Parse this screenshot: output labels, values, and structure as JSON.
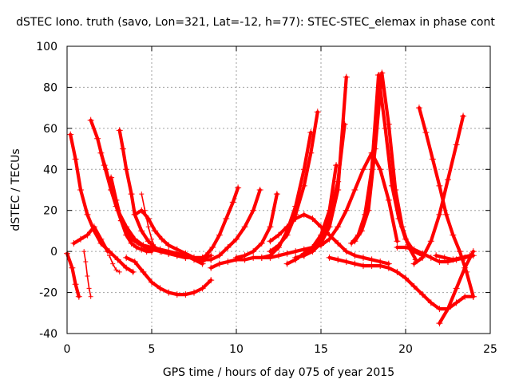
{
  "chart_data": {
    "type": "scatter",
    "title": "dSTEC Iono. truth (savo, Lon=321, Lat=-12, h=77): STEC-STEC_elemax in phase cont",
    "xlabel": "GPS time / hours of day 075 of year 2015",
    "ylabel": "dSTEC  / TECUs",
    "xlim": [
      0,
      25
    ],
    "ylim": [
      -40,
      100
    ],
    "xticks": [
      0,
      5,
      10,
      15,
      20,
      25
    ],
    "yticks": [
      -40,
      -20,
      0,
      20,
      40,
      60,
      80,
      100
    ],
    "grid": true,
    "marker": "plus",
    "color": "#ff0000",
    "series": [
      {
        "x": [
          0.2,
          0.5,
          0.8,
          1.2,
          1.6,
          2.0,
          2.5,
          3.0,
          3.5,
          3.9
        ],
        "y": [
          57,
          45,
          30,
          18,
          10,
          4,
          0,
          -4,
          -8,
          -10
        ]
      },
      {
        "x": [
          0.0,
          0.3,
          0.5,
          0.7
        ],
        "y": [
          -1,
          -8,
          -16,
          -22
        ]
      },
      {
        "x": [
          0.4,
          0.8,
          1.2,
          1.6,
          2.0,
          2.4
        ],
        "y": [
          4,
          6,
          8,
          12,
          6,
          0
        ]
      },
      {
        "x": [
          1.4,
          1.8,
          2.2,
          2.6,
          3.0,
          3.5,
          4.0,
          4.5,
          5.0,
          5.5,
          6.0,
          6.5,
          7.0,
          7.5,
          8.0
        ],
        "y": [
          64,
          55,
          42,
          30,
          20,
          12,
          6,
          3,
          2,
          1,
          0,
          -1,
          -2,
          -4,
          -6
        ]
      },
      {
        "x": [
          2.0,
          2.3,
          2.6,
          2.9,
          3.2,
          3.5,
          3.8,
          4.2,
          4.6,
          5.0,
          5.5,
          6.0,
          6.5,
          7.0,
          7.5,
          8.0,
          8.5
        ],
        "y": [
          48,
          40,
          30,
          22,
          15,
          10,
          6,
          4,
          2,
          1,
          0,
          -1,
          -2,
          -3,
          -3,
          -4,
          -4
        ]
      },
      {
        "x": [
          2.6,
          2.9,
          3.2,
          3.5,
          3.8,
          4.1,
          4.4,
          4.7,
          5.0
        ],
        "y": [
          36,
          25,
          15,
          8,
          4,
          2,
          1,
          0,
          0
        ]
      },
      {
        "x": [
          3.1,
          3.3,
          3.5,
          3.8,
          4.0,
          4.4,
          4.8,
          5.2,
          5.6,
          6.0,
          6.5,
          7.0,
          7.5,
          8.0,
          8.5
        ],
        "y": [
          59,
          50,
          40,
          28,
          18,
          10,
          5,
          2,
          0,
          -1,
          -2,
          -3,
          -3,
          -3,
          -2
        ]
      },
      {
        "x": [
          4.0,
          4.4,
          4.8,
          5.2,
          5.6,
          6.0,
          6.5,
          7.0,
          7.5,
          8.0
        ],
        "y": [
          18,
          20,
          16,
          10,
          6,
          3,
          1,
          -1,
          -3,
          -5
        ]
      },
      {
        "x": [
          3.5,
          4.0,
          4.5,
          5.0,
          5.5,
          6.0,
          6.5,
          7.0,
          7.5,
          8.0,
          8.5
        ],
        "y": [
          -3,
          -5,
          -10,
          -15,
          -18,
          -20,
          -21,
          -21,
          -20,
          -18,
          -14
        ]
      },
      {
        "x": [
          8.5,
          9.0,
          9.5,
          10.0,
          10.5,
          11.0,
          11.5,
          12.0,
          12.5,
          13.0,
          13.5,
          14.0,
          14.5,
          15.0
        ],
        "y": [
          -8,
          -6,
          -5,
          -4,
          -4,
          -3,
          -3,
          -3,
          -2,
          -1,
          0,
          1,
          2,
          3
        ]
      },
      {
        "x": [
          7.8,
          8.2,
          8.6,
          9.0,
          9.4,
          9.8,
          10.1
        ],
        "y": [
          -4,
          -2,
          2,
          8,
          16,
          24,
          31
        ]
      },
      {
        "x": [
          8.5,
          9.0,
          9.5,
          10.0,
          10.5,
          11.0,
          11.4
        ],
        "y": [
          -4,
          -2,
          2,
          6,
          12,
          20,
          30
        ]
      },
      {
        "x": [
          10.0,
          10.5,
          11.0,
          11.5,
          12.0,
          12.4
        ],
        "y": [
          -3,
          -2,
          0,
          4,
          12,
          28
        ]
      },
      {
        "x": [
          11.5,
          12.0,
          12.5,
          13.0,
          13.5,
          14.0,
          14.4
        ],
        "y": [
          -3,
          -2,
          2,
          10,
          22,
          40,
          58
        ]
      },
      {
        "x": [
          12.0,
          12.5,
          13.0,
          13.5,
          14.0,
          14.4,
          14.8
        ],
        "y": [
          0,
          3,
          8,
          18,
          32,
          48,
          68
        ]
      },
      {
        "x": [
          13.0,
          13.5,
          14.0,
          14.5,
          15.0,
          15.5,
          15.9
        ],
        "y": [
          -6,
          -4,
          -1,
          2,
          8,
          20,
          42
        ]
      },
      {
        "x": [
          13.5,
          14.0,
          14.5,
          15.0,
          15.5,
          16.0,
          16.4
        ],
        "y": [
          -3,
          -2,
          1,
          6,
          16,
          34,
          62
        ]
      },
      {
        "x": [
          14.0,
          14.5,
          15.0,
          15.5,
          16.0,
          16.5
        ],
        "y": [
          -2,
          0,
          4,
          12,
          30,
          85
        ]
      },
      {
        "x": [
          12.0,
          12.5,
          13.0,
          13.5,
          14.0,
          14.5,
          15.0,
          15.5,
          16.0,
          16.5,
          17.0,
          17.5,
          18.0,
          18.5,
          19.0
        ],
        "y": [
          5,
          8,
          12,
          16,
          18,
          16,
          12,
          8,
          4,
          0,
          -2,
          -3,
          -4,
          -5,
          -6
        ]
      },
      {
        "x": [
          15.5,
          16.0,
          16.5,
          17.0,
          17.5,
          18.0,
          18.5,
          19.0,
          19.5,
          20.0,
          20.5,
          21.0,
          21.5,
          22.0,
          22.5,
          23.0,
          23.5,
          24.0
        ],
        "y": [
          -3,
          -4,
          -5,
          -6,
          -7,
          -7,
          -7,
          -8,
          -10,
          -13,
          -17,
          -21,
          -25,
          -28,
          -28,
          -25,
          -22,
          -22
        ]
      },
      {
        "x": [
          14.5,
          15.0,
          15.5,
          16.0,
          16.5,
          17.0,
          17.5,
          18.0,
          18.5,
          19.0,
          19.5
        ],
        "y": [
          2,
          3,
          6,
          12,
          20,
          30,
          40,
          48,
          40,
          25,
          5
        ]
      },
      {
        "x": [
          16.8,
          17.2,
          17.6,
          18.0,
          18.4,
          18.8,
          19.2,
          19.6,
          20.0,
          20.5,
          21.0
        ],
        "y": [
          4,
          8,
          18,
          40,
          86,
          60,
          32,
          16,
          6,
          0,
          -2
        ]
      },
      {
        "x": [
          17.0,
          17.4,
          17.8,
          18.2,
          18.6,
          19.0,
          19.4,
          19.8,
          20.2,
          20.6
        ],
        "y": [
          5,
          10,
          20,
          50,
          87,
          62,
          30,
          12,
          2,
          -4
        ]
      },
      {
        "x": [
          19.5,
          20.0,
          20.5,
          21.0,
          21.5,
          22.0,
          22.5,
          23.0,
          23.5,
          24.0
        ],
        "y": [
          2,
          2,
          1,
          -1,
          -3,
          -5,
          -5,
          -4,
          -3,
          -2
        ]
      },
      {
        "x": [
          20.8,
          21.2,
          21.6,
          22.0,
          22.4,
          22.8,
          23.2,
          23.6,
          24.0
        ],
        "y": [
          70,
          58,
          45,
          32,
          18,
          8,
          0,
          -10,
          -22
        ]
      },
      {
        "x": [
          20.5,
          21.0,
          21.5,
          22.0,
          22.5,
          23.0,
          23.4
        ],
        "y": [
          -6,
          -3,
          5,
          18,
          35,
          52,
          66
        ]
      },
      {
        "x": [
          22.0,
          22.5,
          23.0,
          23.5,
          24.0
        ],
        "y": [
          -35,
          -28,
          -18,
          -8,
          0
        ]
      },
      {
        "x": [
          21.8,
          22.3,
          22.8,
          23.3,
          23.8
        ],
        "y": [
          -2,
          -3,
          -4,
          -3,
          -2
        ]
      }
    ],
    "sparse_series": [
      {
        "x": [
          1.0,
          1.1,
          1.2,
          1.3,
          1.4
        ],
        "y": [
          0,
          -5,
          -12,
          -18,
          -22
        ]
      },
      {
        "x": [
          2.5,
          2.7,
          2.9,
          3.1
        ],
        "y": [
          -2,
          -6,
          -9,
          -10
        ]
      },
      {
        "x": [
          4.4,
          4.6,
          4.8,
          5.0,
          5.2
        ],
        "y": [
          28,
          20,
          12,
          6,
          2
        ]
      }
    ]
  }
}
